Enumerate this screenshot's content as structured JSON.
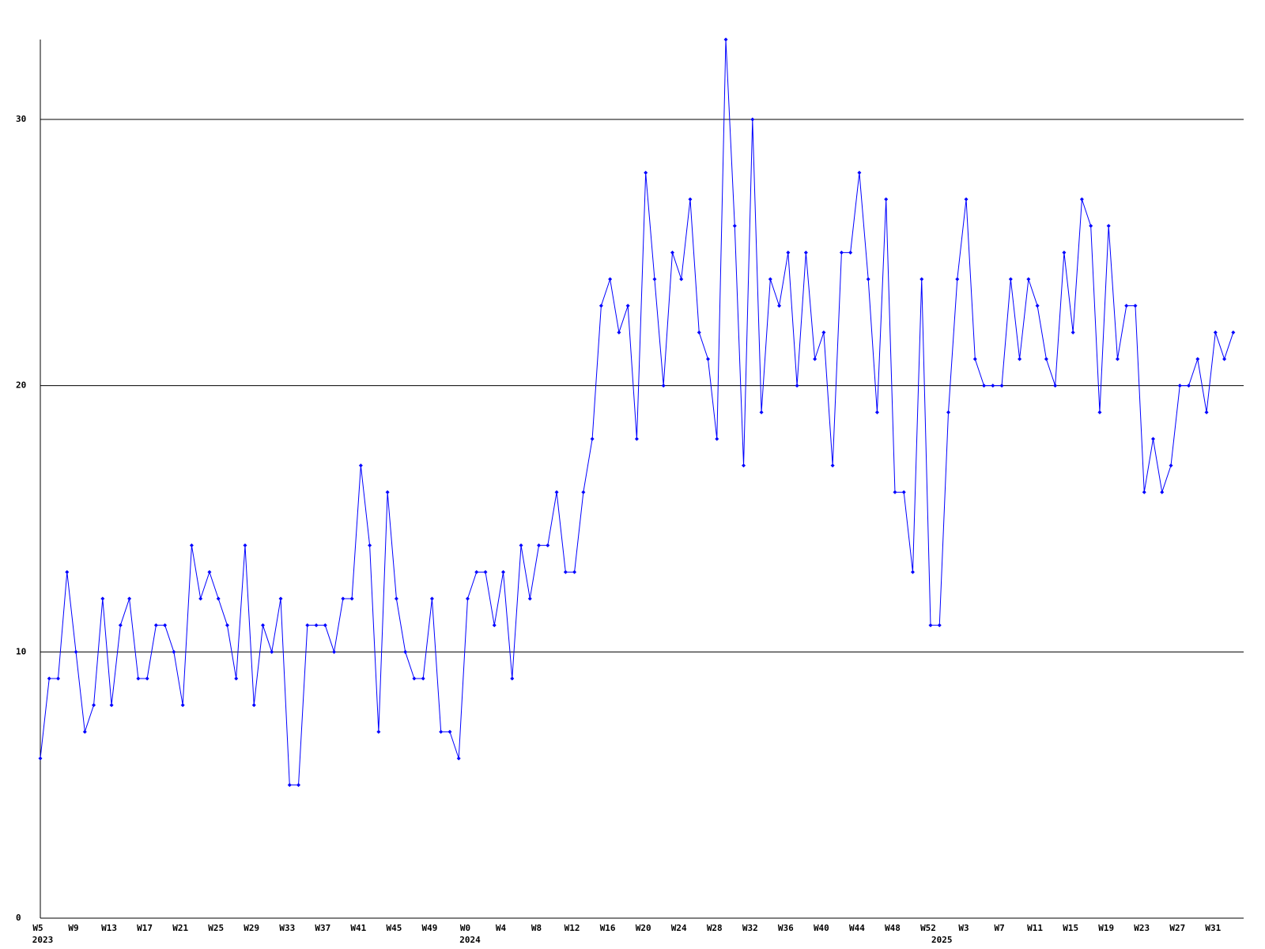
{
  "chart_data": {
    "type": "line",
    "categories": [
      "W5",
      null,
      null,
      null,
      "W9",
      null,
      null,
      null,
      "W13",
      null,
      null,
      null,
      "W17",
      null,
      null,
      null,
      "W21",
      null,
      null,
      null,
      "W25",
      null,
      null,
      null,
      "W29",
      null,
      null,
      null,
      "W33",
      null,
      null,
      null,
      "W37",
      null,
      null,
      null,
      "W41",
      null,
      null,
      null,
      "W45",
      null,
      null,
      null,
      "W49",
      null,
      null,
      null,
      "W0",
      null,
      null,
      null,
      "W4",
      null,
      null,
      null,
      "W8",
      null,
      null,
      null,
      "W12",
      null,
      null,
      null,
      "W16",
      null,
      null,
      null,
      "W20",
      null,
      null,
      null,
      "W24",
      null,
      null,
      null,
      "W28",
      null,
      null,
      null,
      "W32",
      null,
      null,
      null,
      "W36",
      null,
      null,
      null,
      "W40",
      null,
      null,
      null,
      "W44",
      null,
      null,
      null,
      "W48",
      null,
      null,
      null,
      "W52",
      null,
      null,
      null,
      "W3",
      null,
      null,
      null,
      "W7",
      null,
      null,
      null,
      "W11",
      null,
      null,
      null,
      "W15",
      null,
      null,
      null,
      "W19",
      null,
      null,
      null,
      "W23",
      null,
      null,
      null,
      "W27",
      null,
      null,
      null,
      "W31",
      null,
      null
    ],
    "years": [
      "2023",
      null,
      null,
      null,
      null,
      null,
      null,
      null,
      null,
      null,
      null,
      null,
      null,
      null,
      null,
      null,
      null,
      null,
      null,
      null,
      null,
      null,
      null,
      null,
      null,
      null,
      null,
      null,
      null,
      null,
      null,
      null,
      null,
      null,
      null,
      null,
      null,
      null,
      null,
      null,
      null,
      null,
      null,
      null,
      null,
      null,
      null,
      null,
      "2024",
      null,
      null,
      null,
      null,
      null,
      null,
      null,
      null,
      null,
      null,
      null,
      null,
      null,
      null,
      null,
      null,
      null,
      null,
      null,
      null,
      null,
      null,
      null,
      null,
      null,
      null,
      null,
      null,
      null,
      null,
      null,
      null,
      null,
      null,
      null,
      null,
      null,
      null,
      null,
      null,
      null,
      null,
      null,
      null,
      null,
      null,
      null,
      null,
      null,
      null,
      null,
      null,
      "2025",
      null,
      null,
      null,
      null,
      null,
      null,
      null,
      null,
      null,
      null,
      null,
      null,
      null,
      null,
      null,
      null,
      null,
      null,
      null,
      null,
      null,
      null,
      null,
      null,
      null,
      null,
      null,
      null,
      null,
      null,
      null,
      null,
      null
    ],
    "series": [
      {
        "color": "#0000ff",
        "values": [
          6,
          9,
          9,
          13,
          10,
          7,
          8,
          12,
          8,
          11,
          12,
          9,
          9,
          11,
          11,
          10,
          8,
          14,
          12,
          13,
          12,
          11,
          9,
          14,
          8,
          11,
          10,
          12,
          5,
          5,
          11,
          11,
          11,
          10,
          12,
          12,
          17,
          14,
          7,
          16,
          12,
          10,
          9,
          9,
          12,
          7,
          7,
          6,
          12,
          13,
          13,
          11,
          13,
          9,
          14,
          12,
          14,
          14,
          16,
          13,
          13,
          16,
          18,
          23,
          24,
          22,
          23,
          18,
          28,
          24,
          20,
          25,
          24,
          27,
          22,
          21,
          18,
          33,
          26,
          17,
          30,
          19,
          24,
          23,
          25,
          20,
          25,
          21,
          22,
          17,
          25,
          25,
          28,
          24,
          19,
          27,
          16,
          16,
          13,
          24,
          11,
          11,
          19,
          24,
          27,
          21,
          20,
          20,
          20,
          24,
          21,
          24,
          23,
          21,
          20,
          25,
          22,
          27,
          26,
          19,
          26,
          21,
          23,
          23,
          16,
          18,
          16,
          17,
          20,
          20,
          21,
          19,
          22,
          21,
          22
        ]
      }
    ],
    "ylim": [
      0,
      33
    ],
    "yticks": [
      0,
      10,
      20,
      30
    ],
    "grid": true
  }
}
